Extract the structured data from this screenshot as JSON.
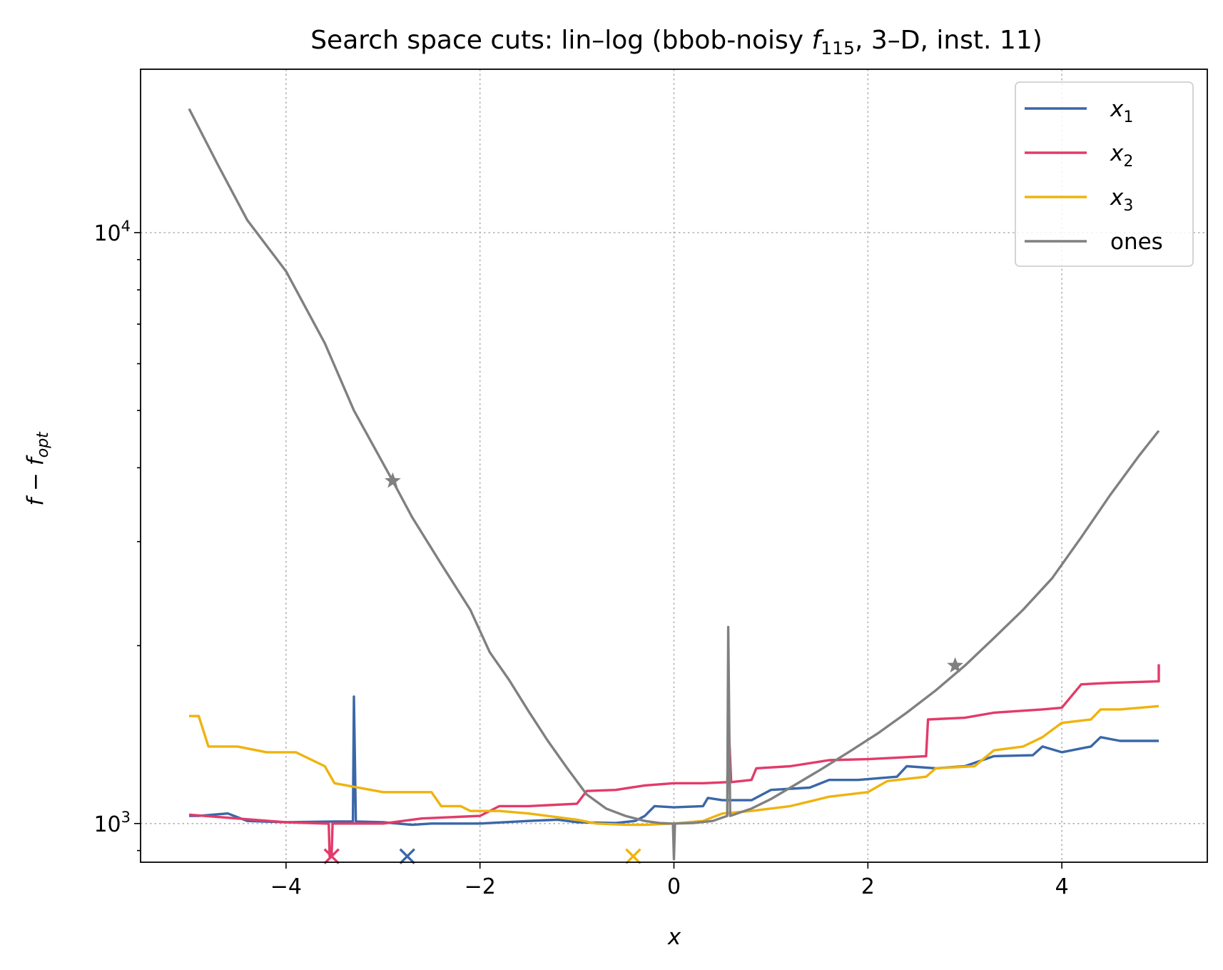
{
  "chart_data": {
    "type": "line",
    "title": "Search space cuts: lin–log (bbob-noisy f115, 3–D, inst. 11)",
    "title_parts": {
      "pre": "Search space cuts: lin–log (bbob-noisy ",
      "f": "f",
      "sub": "115",
      "post": ", 3–D, inst. 11)"
    },
    "xlabel": "x",
    "ylabel": "f − f_opt",
    "ylabel_parts": {
      "f": "f",
      "minus": " − ",
      "f2": "f",
      "sub": "opt"
    },
    "xlim": [
      -5.5,
      5.5
    ],
    "ylim": [
      860,
      18900
    ],
    "yscale": "log",
    "grid": true,
    "legend_placement": "top-right",
    "x_ticks": [
      {
        "value": -4,
        "label": "−4"
      },
      {
        "value": -2,
        "label": "−2"
      },
      {
        "value": 0,
        "label": "0"
      },
      {
        "value": 2,
        "label": "2"
      },
      {
        "value": 4,
        "label": "4"
      }
    ],
    "y_ticks": [
      {
        "value": 1000,
        "base": "10",
        "exp": "3"
      },
      {
        "value": 10000,
        "base": "10",
        "exp": "4"
      }
    ],
    "series": [
      {
        "name": "x1",
        "legend_base": "x",
        "legend_sub": "1",
        "color": "#3a67a8",
        "points": [
          [
            -5,
            1030
          ],
          [
            -4.9,
            1030
          ],
          [
            -4.6,
            1040
          ],
          [
            -4.4,
            1010
          ],
          [
            -4,
            1005
          ],
          [
            -3.5,
            1008
          ],
          [
            -3.31,
            1008
          ],
          [
            -3.3,
            1640
          ],
          [
            -3.28,
            1008
          ],
          [
            -3,
            1005
          ],
          [
            -2.7,
            995
          ],
          [
            -2.5,
            1000
          ],
          [
            -2,
            1000
          ],
          [
            -1.5,
            1010
          ],
          [
            -1.2,
            1015
          ],
          [
            -1,
            1005
          ],
          [
            -0.6,
            1002
          ],
          [
            -0.4,
            1010
          ],
          [
            -0.3,
            1030
          ],
          [
            -0.2,
            1070
          ],
          [
            0,
            1065
          ],
          [
            0.3,
            1070
          ],
          [
            0.35,
            1105
          ],
          [
            0.5,
            1095
          ],
          [
            0.8,
            1095
          ],
          [
            1,
            1140
          ],
          [
            1.4,
            1150
          ],
          [
            1.6,
            1185
          ],
          [
            1.9,
            1185
          ],
          [
            2.3,
            1200
          ],
          [
            2.4,
            1250
          ],
          [
            2.7,
            1240
          ],
          [
            3,
            1250
          ],
          [
            3.3,
            1300
          ],
          [
            3.7,
            1305
          ],
          [
            3.8,
            1350
          ],
          [
            4,
            1320
          ],
          [
            4.3,
            1350
          ],
          [
            4.4,
            1400
          ],
          [
            4.6,
            1380
          ],
          [
            5,
            1380
          ]
        ]
      },
      {
        "name": "x2",
        "legend_base": "x",
        "legend_sub": "2",
        "color": "#e23b6a",
        "points": [
          [
            -5,
            1035
          ],
          [
            -4,
            1005
          ],
          [
            -3.6,
            1000
          ],
          [
            -3.56,
            1000
          ],
          [
            -3.55,
            880
          ],
          [
            -3.53,
            880
          ],
          [
            -3.52,
            1000
          ],
          [
            -3,
            1000
          ],
          [
            -2.6,
            1020
          ],
          [
            -2,
            1030
          ],
          [
            -1.8,
            1070
          ],
          [
            -1.5,
            1070
          ],
          [
            -1,
            1080
          ],
          [
            -0.9,
            1135
          ],
          [
            -0.6,
            1140
          ],
          [
            -0.3,
            1160
          ],
          [
            0,
            1170
          ],
          [
            0.3,
            1170
          ],
          [
            0.55,
            1175
          ],
          [
            0.57,
            1400
          ],
          [
            0.59,
            1175
          ],
          [
            0.8,
            1185
          ],
          [
            0.85,
            1240
          ],
          [
            1.2,
            1250
          ],
          [
            1.6,
            1280
          ],
          [
            2,
            1285
          ],
          [
            2.6,
            1300
          ],
          [
            2.62,
            1500
          ],
          [
            3,
            1510
          ],
          [
            3.3,
            1540
          ],
          [
            3.8,
            1560
          ],
          [
            4,
            1570
          ],
          [
            4.2,
            1720
          ],
          [
            4.5,
            1730
          ],
          [
            5,
            1740
          ],
          [
            5,
            1860
          ]
        ]
      },
      {
        "name": "x3",
        "legend_base": "x",
        "legend_sub": "3",
        "color": "#efb30d",
        "points": [
          [
            -5,
            1520
          ],
          [
            -4.9,
            1520
          ],
          [
            -4.8,
            1350
          ],
          [
            -4.5,
            1350
          ],
          [
            -4.2,
            1320
          ],
          [
            -3.9,
            1320
          ],
          [
            -3.6,
            1250
          ],
          [
            -3.5,
            1170
          ],
          [
            -3,
            1130
          ],
          [
            -2.5,
            1130
          ],
          [
            -2.4,
            1070
          ],
          [
            -2.2,
            1070
          ],
          [
            -2.1,
            1050
          ],
          [
            -1.8,
            1050
          ],
          [
            -1.5,
            1040
          ],
          [
            -1,
            1015
          ],
          [
            -0.8,
            1000
          ],
          [
            -0.5,
            995
          ],
          [
            -0.3,
            995
          ],
          [
            0,
            1000
          ],
          [
            0.3,
            1010
          ],
          [
            0.5,
            1040
          ],
          [
            0.8,
            1050
          ],
          [
            1,
            1060
          ],
          [
            1.2,
            1070
          ],
          [
            1.5,
            1100
          ],
          [
            1.6,
            1110
          ],
          [
            2,
            1130
          ],
          [
            2.2,
            1180
          ],
          [
            2.6,
            1200
          ],
          [
            2.7,
            1240
          ],
          [
            3.1,
            1250
          ],
          [
            3.3,
            1330
          ],
          [
            3.6,
            1350
          ],
          [
            3.8,
            1400
          ],
          [
            3.9,
            1440
          ],
          [
            4,
            1480
          ],
          [
            4.3,
            1500
          ],
          [
            4.4,
            1560
          ],
          [
            4.6,
            1560
          ],
          [
            5,
            1580
          ]
        ]
      },
      {
        "name": "ones",
        "legend_base": "ones",
        "legend_sub": "",
        "color": "#808080",
        "points": [
          [
            -5,
            16200
          ],
          [
            -4.7,
            13000
          ],
          [
            -4.4,
            10500
          ],
          [
            -4,
            8600
          ],
          [
            -3.6,
            6500
          ],
          [
            -3.3,
            5000
          ],
          [
            -2.9,
            3800
          ],
          [
            -2.7,
            3300
          ],
          [
            -2.4,
            2750
          ],
          [
            -2.1,
            2300
          ],
          [
            -1.9,
            1950
          ],
          [
            -1.7,
            1750
          ],
          [
            -1.5,
            1550
          ],
          [
            -1.3,
            1380
          ],
          [
            -1.1,
            1240
          ],
          [
            -0.9,
            1120
          ],
          [
            -0.7,
            1060
          ],
          [
            -0.5,
            1030
          ],
          [
            -0.3,
            1010
          ],
          [
            -0.15,
            1002
          ],
          [
            -0.02,
            1000
          ],
          [
            -0.01,
            1000
          ],
          [
            0,
            870
          ],
          [
            0.01,
            1000
          ],
          [
            0.2,
            1002
          ],
          [
            0.4,
            1010
          ],
          [
            0.55,
            1030
          ],
          [
            0.56,
            2150
          ],
          [
            0.58,
            1030
          ],
          [
            0.8,
            1060
          ],
          [
            1,
            1100
          ],
          [
            1.2,
            1150
          ],
          [
            1.5,
            1230
          ],
          [
            1.8,
            1320
          ],
          [
            2.1,
            1420
          ],
          [
            2.4,
            1540
          ],
          [
            2.7,
            1680
          ],
          [
            3,
            1850
          ],
          [
            3.3,
            2060
          ],
          [
            3.6,
            2300
          ],
          [
            3.9,
            2600
          ],
          [
            4.2,
            3050
          ],
          [
            4.5,
            3600
          ],
          [
            4.8,
            4200
          ],
          [
            5,
            4620
          ]
        ]
      }
    ],
    "markers": [
      {
        "series": "x1",
        "shape": "x",
        "x": -2.75,
        "y": 880,
        "color": "#3a67a8"
      },
      {
        "series": "x2",
        "shape": "x",
        "x": -3.53,
        "y": 880,
        "color": "#e23b6a"
      },
      {
        "series": "x3",
        "shape": "x",
        "x": -0.42,
        "y": 880,
        "color": "#efb30d"
      },
      {
        "series": "ones",
        "shape": "star",
        "x": -2.9,
        "y": 3800,
        "color": "#808080"
      },
      {
        "series": "ones",
        "shape": "star",
        "x": 2.9,
        "y": 1850,
        "color": "#808080"
      }
    ]
  }
}
